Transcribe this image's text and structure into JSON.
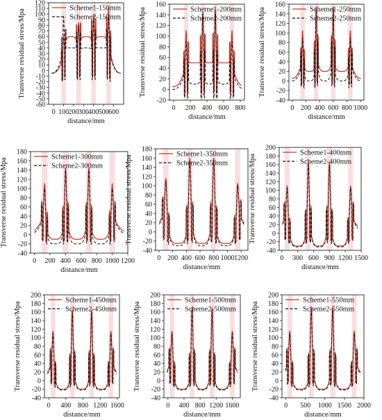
{
  "figure": {
    "colors": {
      "scheme1": "#c0392b",
      "scheme2": "#111111",
      "band": "#f2c9cd"
    },
    "ylabel": "Transverse residual stress/Mpa",
    "xlabel": "distance/mm"
  },
  "chart_data": [
    {
      "type": "line",
      "xlim": [
        -50,
        700
      ],
      "ylim": [
        -60,
        120
      ],
      "xticks": [
        0,
        100,
        200,
        300,
        400,
        500,
        600
      ],
      "yticks": [
        -60,
        -50,
        -40,
        -30,
        -20,
        -10,
        0,
        10,
        20,
        30,
        40,
        50,
        60,
        70,
        80,
        90,
        100,
        110,
        120
      ],
      "welds": [
        100,
        250,
        400,
        550
      ],
      "series": [
        {
          "name": "Scheme1-150mm",
          "peaks": [
            60,
            85,
            100,
            112
          ],
          "valley": 60,
          "edge": -5,
          "dip": -30
        },
        {
          "name": "Scheme2-150mm",
          "peaks": [
            95,
            80,
            90,
            95
          ],
          "valley": 40,
          "edge": -5,
          "dip": -35
        }
      ]
    },
    {
      "type": "line",
      "xlim": [
        -50,
        850
      ],
      "ylim": [
        -20,
        160
      ],
      "xticks": [
        0,
        200,
        400,
        600,
        800
      ],
      "yticks": [
        -20,
        0,
        20,
        40,
        60,
        80,
        100,
        120,
        140,
        160
      ],
      "welds": [
        150,
        350,
        500,
        700
      ],
      "series": [
        {
          "name": "Scheme1-200mm",
          "peaks": [
            110,
            145,
            150,
            110
          ],
          "valley": 50,
          "edge": 5,
          "dip": -25
        },
        {
          "name": "Scheme2-200mm",
          "peaks": [
            90,
            145,
            145,
            90
          ],
          "valley": 10,
          "edge": 0,
          "dip": -30
        }
      ]
    },
    {
      "type": "line",
      "xlim": [
        -50,
        1050
      ],
      "ylim": [
        -40,
        160
      ],
      "xticks": [
        0,
        200,
        400,
        600,
        800,
        1000
      ],
      "yticks": [
        -40,
        -20,
        0,
        20,
        40,
        60,
        80,
        100,
        120,
        140,
        160
      ],
      "welds": [
        150,
        350,
        600,
        850
      ],
      "series": [
        {
          "name": "Scheme1-250mm",
          "peaks": [
            105,
            155,
            155,
            105
          ],
          "valley": 20,
          "edge": 5,
          "dip": -20
        },
        {
          "name": "Scheme2-250mm",
          "peaks": [
            90,
            150,
            150,
            90
          ],
          "valley": 0,
          "edge": 0,
          "dip": -25
        }
      ]
    },
    {
      "type": "line",
      "xlim": [
        -50,
        1200
      ],
      "ylim": [
        -40,
        180
      ],
      "xticks": [
        0,
        200,
        400,
        600,
        800,
        1000,
        1200
      ],
      "yticks": [
        -40,
        -20,
        0,
        20,
        40,
        60,
        80,
        100,
        120,
        140,
        160,
        180
      ],
      "welds": [
        130,
        400,
        700,
        1000
      ],
      "series": [
        {
          "name": "Scheme1-300mm",
          "peaks": [
            110,
            145,
            145,
            110
          ],
          "valley": -10,
          "edge": 5,
          "dip": -25
        },
        {
          "name": "Scheme2-300mm",
          "peaks": [
            100,
            140,
            140,
            100
          ],
          "valley": -20,
          "edge": 0,
          "dip": -30
        }
      ]
    },
    {
      "type": "line",
      "xlim": [
        -50,
        1300
      ],
      "ylim": [
        -40,
        180
      ],
      "xticks": [
        0,
        200,
        400,
        600,
        800,
        1000,
        1200
      ],
      "yticks": [
        -40,
        -20,
        0,
        20,
        40,
        60,
        80,
        100,
        120,
        140,
        160,
        180
      ],
      "welds": [
        100,
        450,
        800,
        1150
      ],
      "series": [
        {
          "name": "Scheme1-350mm",
          "peaks": [
            115,
            160,
            160,
            105
          ],
          "valley": -25,
          "edge": 5,
          "dip": -30
        },
        {
          "name": "Scheme2-350mm",
          "peaks": [
            110,
            155,
            155,
            100
          ],
          "valley": -30,
          "edge": 0,
          "dip": -35
        }
      ]
    },
    {
      "type": "line",
      "xlim": [
        -50,
        1500
      ],
      "ylim": [
        -40,
        200
      ],
      "xticks": [
        0,
        300,
        600,
        900,
        1200,
        1500
      ],
      "xticklabels": [
        "0",
        "300",
        "600",
        "900",
        "1200",
        "1500"
      ],
      "yticks": [
        -40,
        -20,
        0,
        20,
        40,
        60,
        80,
        100,
        120,
        140,
        160,
        180,
        200
      ],
      "welds": [
        100,
        500,
        900,
        1300
      ],
      "series": [
        {
          "name": "Scheme1-400mm",
          "peaks": [
            110,
            165,
            165,
            110
          ],
          "valley": -30,
          "edge": 5,
          "dip": -30
        },
        {
          "name": "Scheme2-400mm",
          "peaks": [
            105,
            160,
            160,
            105
          ],
          "valley": -32,
          "edge": 0,
          "dip": -33
        }
      ]
    },
    {
      "type": "line",
      "xlim": [
        -100,
        1650
      ],
      "ylim": [
        -40,
        200
      ],
      "xticks": [
        0,
        400,
        800,
        1200,
        1600
      ],
      "yticks": [
        -40,
        -20,
        0,
        20,
        40,
        60,
        80,
        100,
        120,
        140,
        160,
        180,
        200
      ],
      "welds": [
        100,
        550,
        1000,
        1450
      ],
      "series": [
        {
          "name": "Scheme1-450mm",
          "peaks": [
            115,
            165,
            165,
            115
          ],
          "valley": -20,
          "edge": 5,
          "dip": -20
        },
        {
          "name": "Scheme2-450mm",
          "peaks": [
            110,
            160,
            160,
            110
          ],
          "valley": -22,
          "edge": 0,
          "dip": -22
        }
      ]
    },
    {
      "type": "line",
      "xlim": [
        -100,
        1800
      ],
      "ylim": [
        -40,
        200
      ],
      "xticks": [
        0,
        400,
        800,
        1200,
        1600
      ],
      "yticks": [
        -40,
        -20,
        0,
        20,
        40,
        60,
        80,
        100,
        120,
        140,
        160,
        180,
        200
      ],
      "welds": [
        100,
        600,
        1100,
        1600
      ],
      "series": [
        {
          "name": "Scheme1-500mm",
          "peaks": [
            115,
            170,
            170,
            115
          ],
          "valley": -20,
          "edge": 5,
          "dip": -20
        },
        {
          "name": "Scheme2-500mm",
          "peaks": [
            110,
            165,
            165,
            110
          ],
          "valley": -22,
          "edge": 0,
          "dip": -22
        }
      ]
    },
    {
      "type": "line",
      "xlim": [
        -100,
        2000
      ],
      "ylim": [
        -40,
        200
      ],
      "xticks": [
        0,
        500,
        1000,
        1500,
        2000
      ],
      "yticks": [
        -40,
        -20,
        0,
        20,
        40,
        60,
        80,
        100,
        120,
        140,
        160,
        180,
        200
      ],
      "welds": [
        100,
        650,
        1200,
        1750
      ],
      "series": [
        {
          "name": "Scheme1-550mm",
          "peaks": [
            115,
            170,
            170,
            115
          ],
          "valley": -20,
          "edge": 5,
          "dip": -20
        },
        {
          "name": "Scheme2-550mm",
          "peaks": [
            110,
            165,
            165,
            110
          ],
          "valley": -22,
          "edge": 0,
          "dip": -22
        }
      ]
    }
  ]
}
